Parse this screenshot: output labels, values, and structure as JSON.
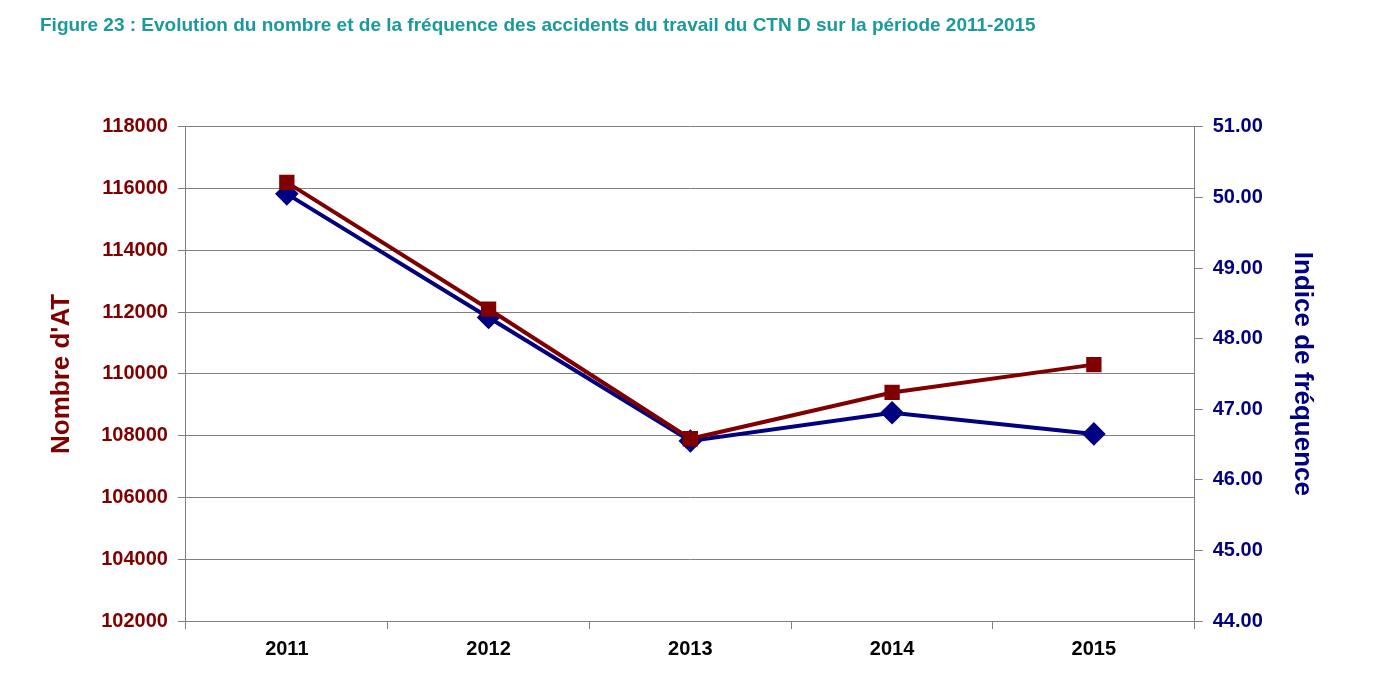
{
  "chart_data": {
    "type": "line",
    "title": "Figure 23 : Evolution du nombre et de la fréquence des accidents du travail du CTN D sur la période 2011-2015",
    "categories": [
      "2011",
      "2012",
      "2013",
      "2014",
      "2015"
    ],
    "y_label": "Nombre d'AT",
    "y2_label": "Indice de fréquence",
    "series": [
      {
        "color": "#800000",
        "marker": "square",
        "line_style": "solid",
        "axis": "y",
        "values": [
          116200,
          112100,
          107900,
          109400,
          110300
        ]
      },
      {
        "color": "#000080",
        "marker": "diamond",
        "line_style": "solid",
        "axis": "y2",
        "values": [
          50.05,
          48.3,
          46.55,
          46.95,
          46.65
        ]
      }
    ],
    "ylim": [
      102000,
      118000
    ],
    "yticks": [
      102000,
      104000,
      106000,
      108000,
      110000,
      112000,
      114000,
      116000,
      118000
    ],
    "y2lim": [
      44,
      51
    ],
    "y2ticks": [
      {
        "value": 44,
        "label": "44.00"
      },
      {
        "value": 45,
        "label": "45.00"
      },
      {
        "value": 46,
        "label": "46.00"
      },
      {
        "value": 47,
        "label": "47.00"
      },
      {
        "value": 48,
        "label": "48.00"
      },
      {
        "value": 49,
        "label": "49.00"
      },
      {
        "value": 50,
        "label": "50.00"
      },
      {
        "value": 51,
        "label": "51.00"
      }
    ],
    "grid": true,
    "legend": false
  }
}
